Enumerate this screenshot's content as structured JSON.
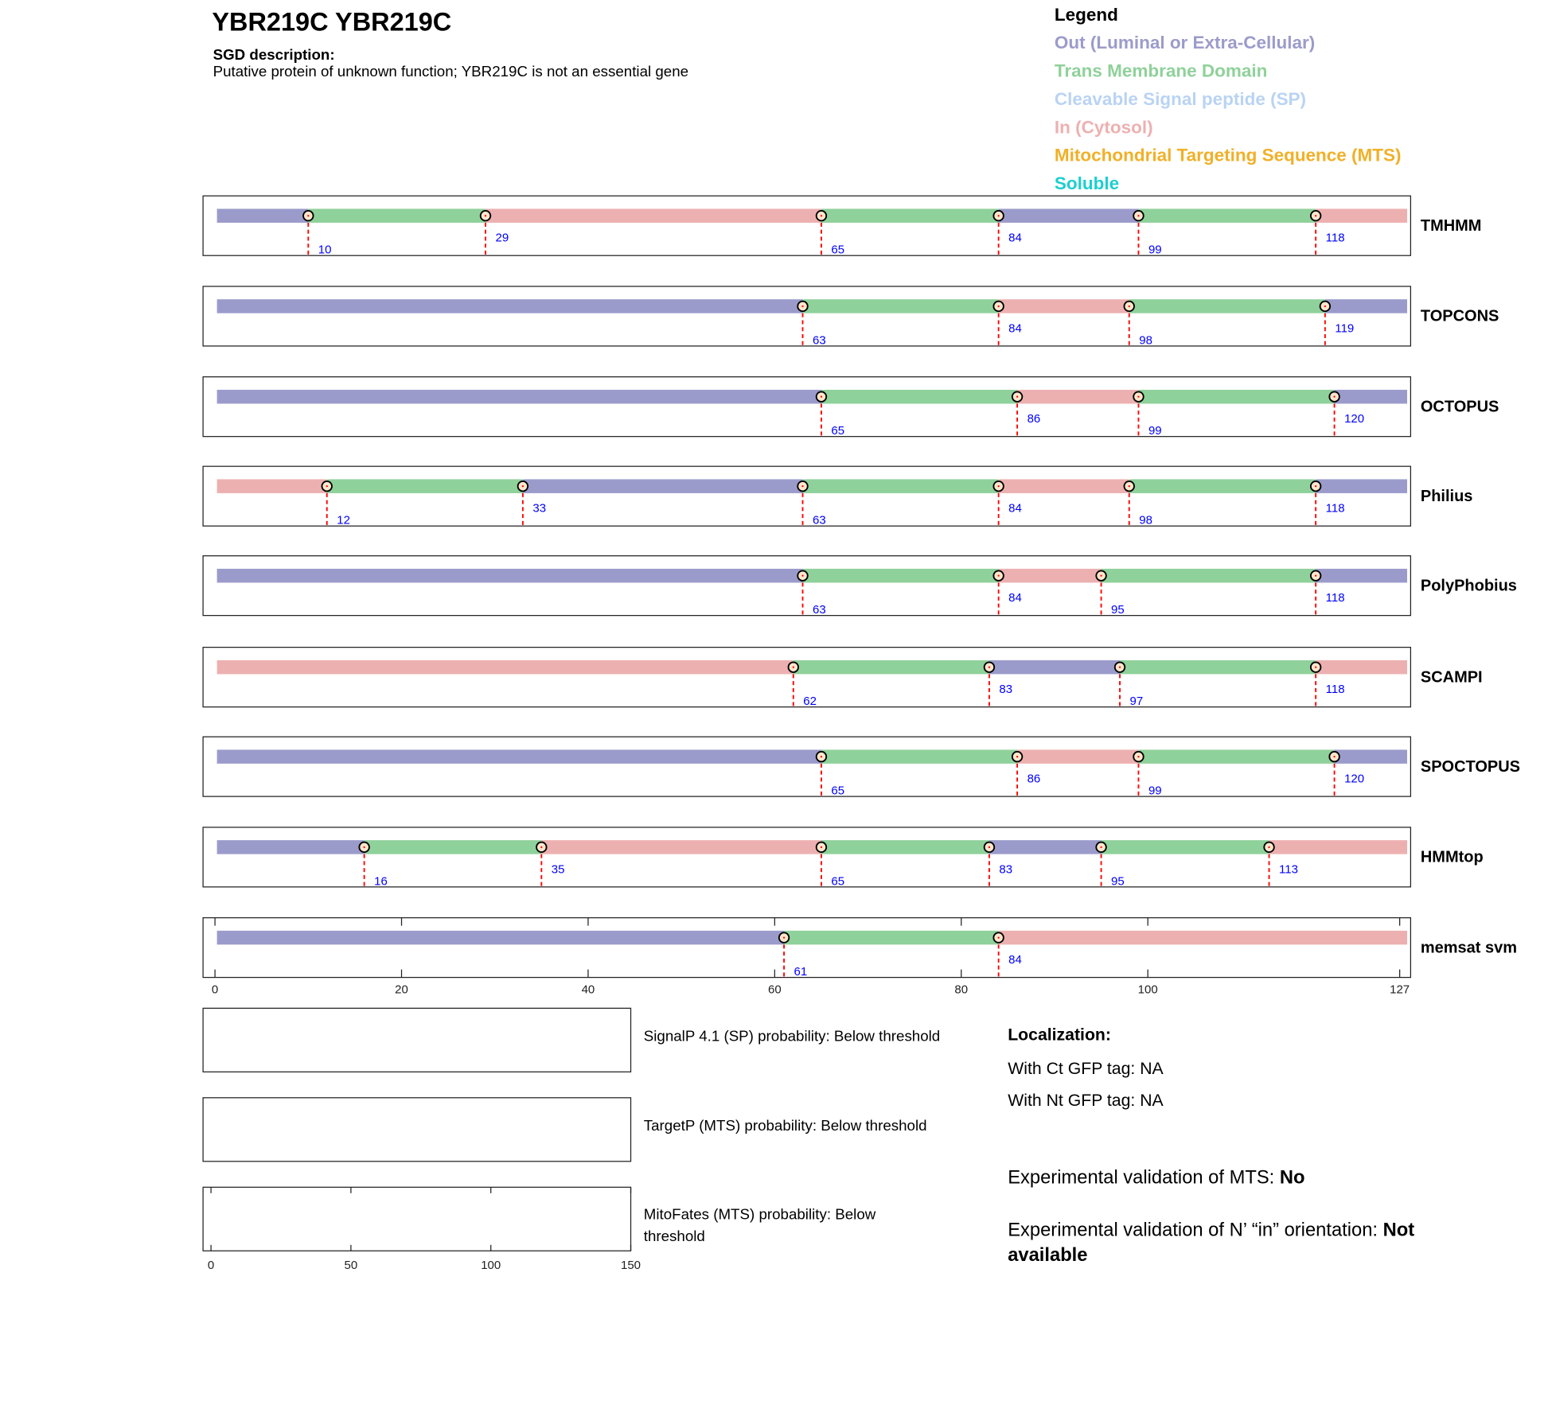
{
  "header": {
    "title": "YBR219C  YBR219C",
    "desc_label": "SGD description:",
    "desc_text": "Putative protein of unknown function; YBR219C is not an essential gene"
  },
  "legend": {
    "title": "Legend",
    "items": [
      {
        "label": "Out (Luminal or Extra-Cellular)",
        "color": "#9b9bcb"
      },
      {
        "label": "Trans Membrane Domain",
        "color": "#8fd19a"
      },
      {
        "label": "Cleavable Signal peptide (SP)",
        "color": "#b9d3f3"
      },
      {
        "label": "In (Cytosol)",
        "color": "#edb0b0"
      },
      {
        "label": "Mitochondrial Targeting Sequence (MTS)",
        "color": "#f0b028"
      },
      {
        "label": "Soluble",
        "color": "#1ccfcf"
      }
    ]
  },
  "chart_data": {
    "type": "topology-tracks",
    "xlim": [
      0,
      127
    ],
    "xticks": [
      0,
      20,
      40,
      60,
      80,
      100,
      127
    ],
    "colors": {
      "out": "#9b9bcb",
      "tm": "#8fd19a",
      "in": "#edb0b0"
    },
    "tracks": [
      {
        "name": "TMHMM",
        "start": "out",
        "boundaries": [
          10,
          29,
          65,
          84,
          99,
          118
        ]
      },
      {
        "name": "TOPCONS",
        "start": "out",
        "boundaries": [
          63,
          84,
          98,
          119
        ]
      },
      {
        "name": "OCTOPUS",
        "start": "out",
        "boundaries": [
          65,
          86,
          99,
          120
        ]
      },
      {
        "name": "Philius",
        "start": "in",
        "boundaries": [
          12,
          33,
          63,
          84,
          98,
          118
        ]
      },
      {
        "name": "PolyPhobius",
        "start": "out",
        "boundaries": [
          63,
          84,
          95,
          118
        ]
      },
      {
        "name": "SCAMPI",
        "start": "in",
        "boundaries": [
          62,
          83,
          97,
          118
        ]
      },
      {
        "name": "SPOCTOPUS",
        "start": "out",
        "boundaries": [
          65,
          86,
          99,
          120
        ]
      },
      {
        "name": "HMMtop",
        "start": "out",
        "boundaries": [
          16,
          35,
          65,
          83,
          95,
          113
        ]
      },
      {
        "name": "memsat svm",
        "start": "out",
        "boundaries": [
          61,
          84
        ]
      }
    ],
    "prob_axis": {
      "xlim": [
        0,
        150
      ],
      "xticks": [
        0,
        50,
        100,
        150
      ]
    },
    "prob_panels": [
      {
        "label": "SignalP 4.1 (SP) probability: Below threshold"
      },
      {
        "label": "TargetP (MTS) probability: Below threshold"
      },
      {
        "label_line1": "MitoFates (MTS) probability: Below",
        "label_line2": "threshold"
      }
    ]
  },
  "localization": {
    "title": "Localization:",
    "ct": "With Ct GFP tag: NA",
    "nt": "With Nt GFP tag: NA",
    "mts_prefix": "Experimental validation of MTS: ",
    "mts_value": "No",
    "orient_prefix": "Experimental validation of N’ “in” orientation: ",
    "orient_value1": "Not",
    "orient_value2": "available"
  }
}
